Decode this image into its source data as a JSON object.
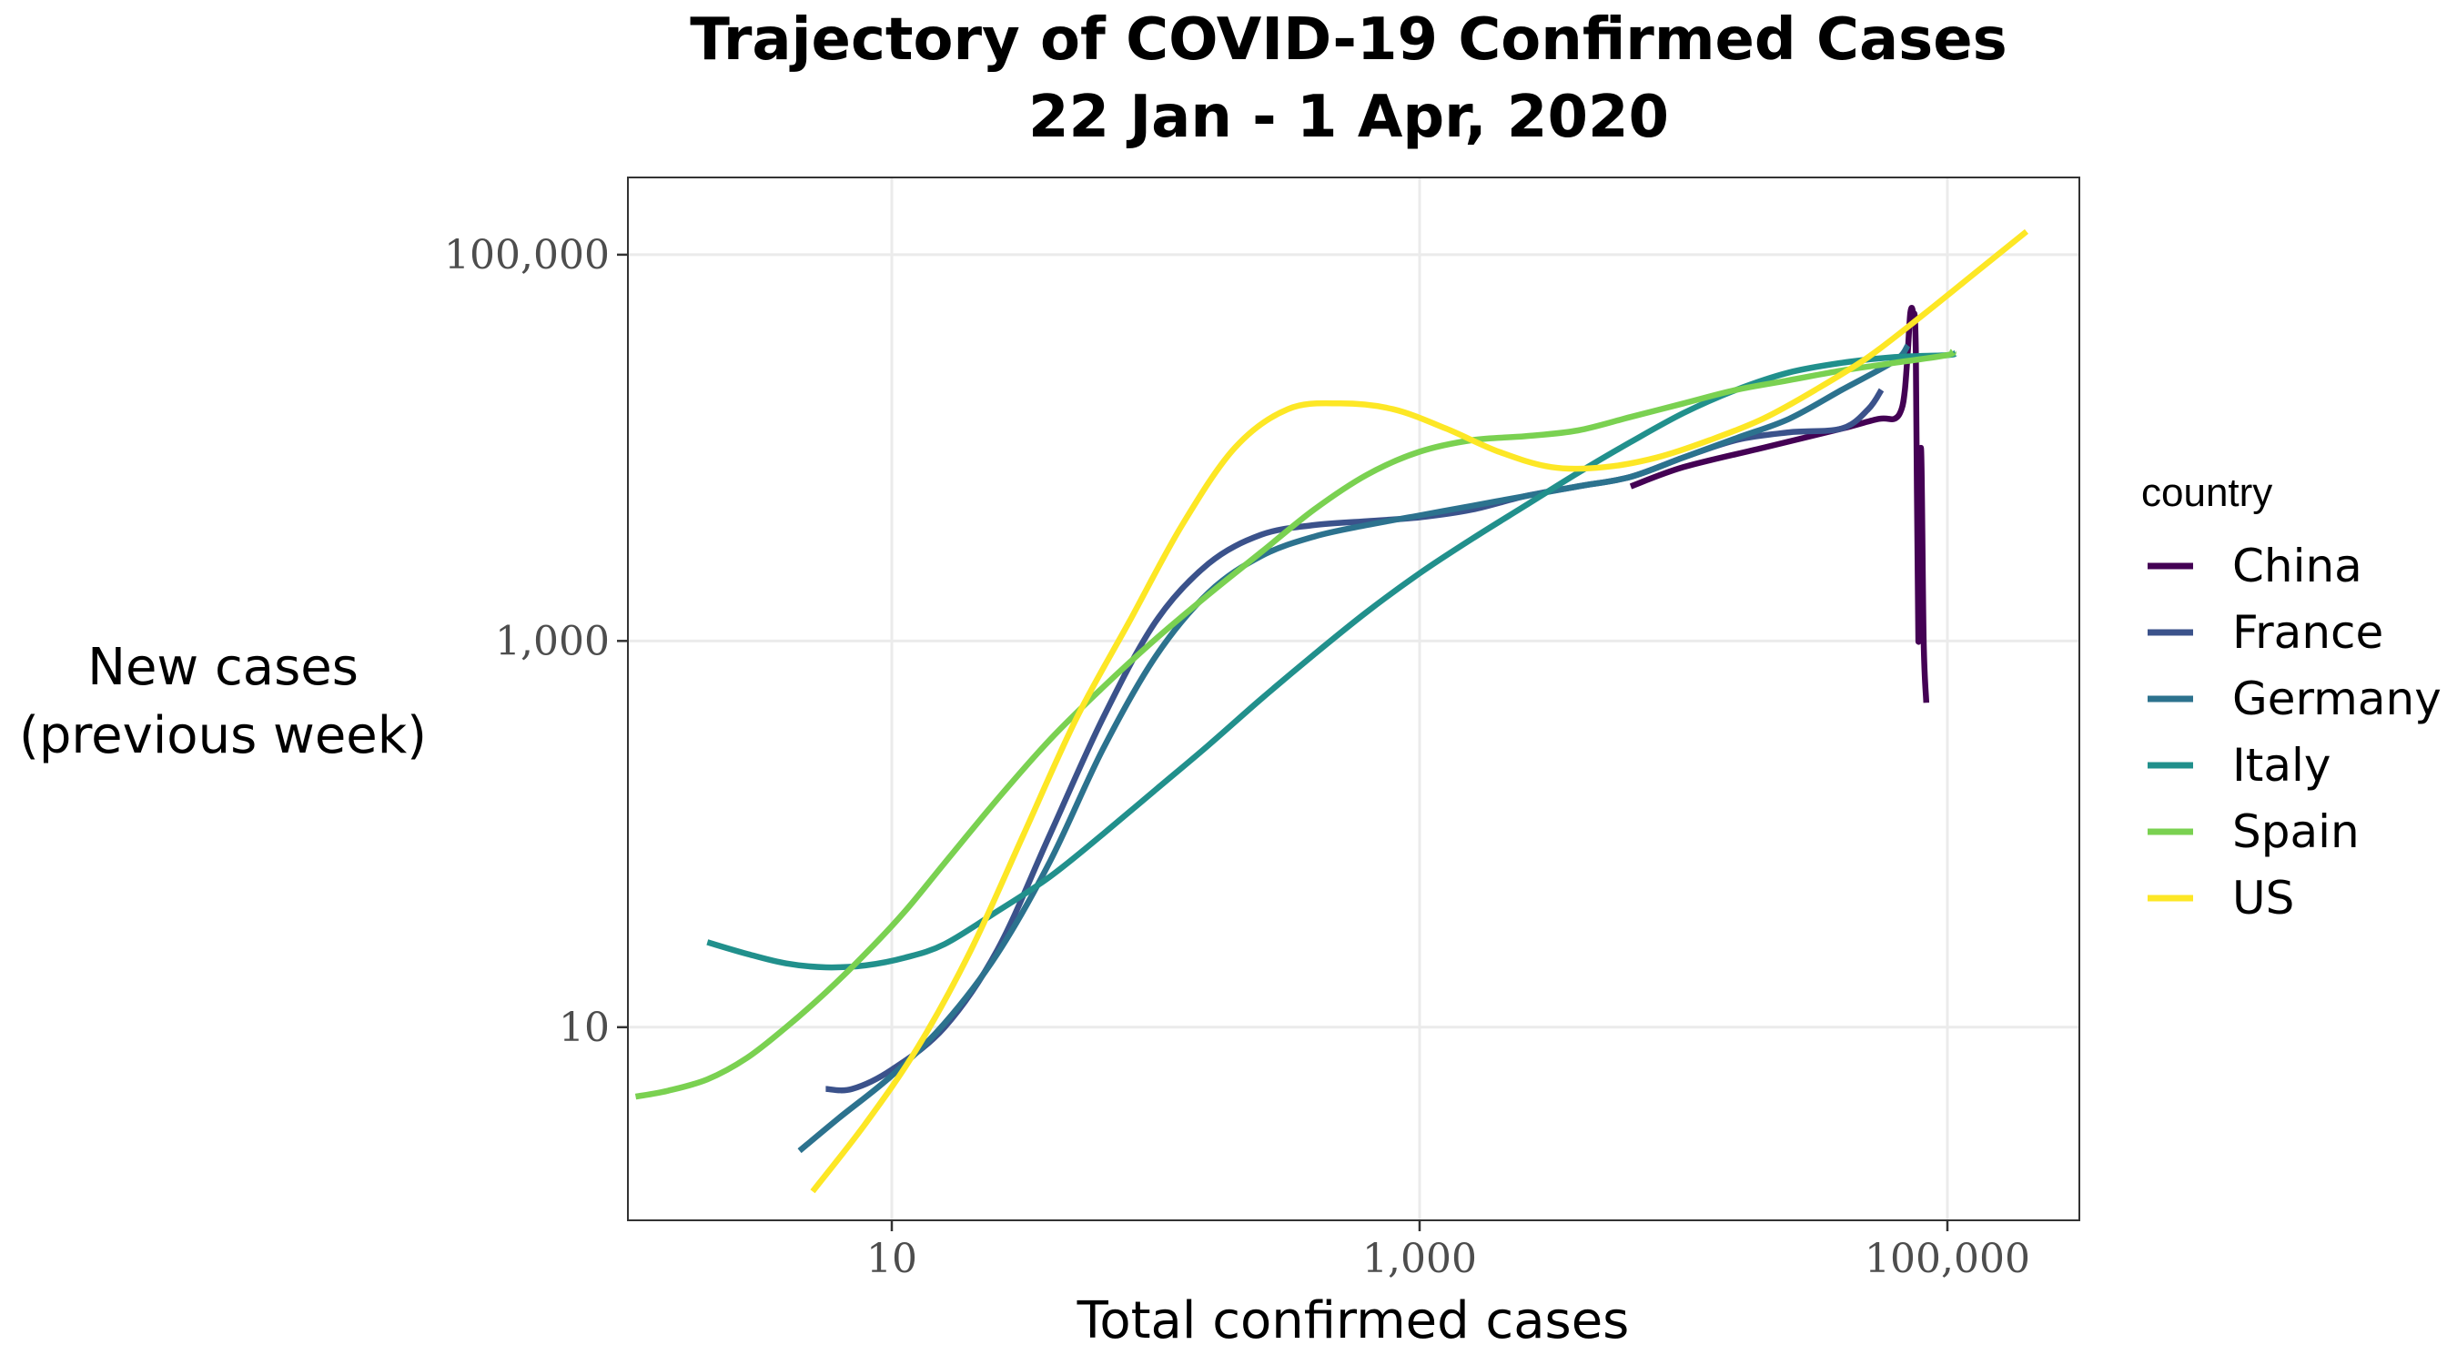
{
  "chart_data": {
    "type": "line",
    "title": "Trajectory of COVID-19 Confirmed Cases",
    "subtitle": "22 Jan - 1 Apr, 2020",
    "xlabel": "Total confirmed cases",
    "ylabel_line1": "New cases",
    "ylabel_line2": "(previous week)",
    "x_scale": "log10",
    "y_scale": "log10",
    "xlim": [
      1.0,
      316227
    ],
    "ylim": [
      1.0,
      251189
    ],
    "x_ticks": [
      10,
      1000,
      100000
    ],
    "x_tick_labels": [
      "10",
      "1,000",
      "100,000"
    ],
    "y_ticks": [
      10,
      1000,
      100000
    ],
    "y_tick_labels": [
      "10",
      "1,000",
      "100,000"
    ],
    "grid": true,
    "legend": {
      "title": "country",
      "position": "right"
    },
    "series": [
      {
        "name": "China",
        "color": "#440154",
        "x": [
          6310,
          10000,
          20000,
          40000,
          55000,
          63000,
          67000,
          69000,
          70800,
          72400,
          74100,
          75900,
          77600,
          79400,
          81300,
          83200
        ],
        "y": [
          6310,
          7943,
          10000,
          12589,
          14125,
          14125,
          15849,
          19953,
          31623,
          50119,
          50119,
          31623,
          1000,
          10000,
          1000,
          479
        ]
      },
      {
        "name": "France",
        "color": "#3b528b",
        "x": [
          5.62,
          7.08,
          10,
          15.85,
          25.12,
          39.81,
          63.1,
          100,
          158.5,
          251.2,
          398.1,
          631,
          1000,
          1585,
          2512,
          3981,
          6310,
          10000,
          15849,
          25119,
          39811,
          50119,
          56234
        ],
        "y": [
          4.79,
          4.79,
          6.03,
          10,
          25.12,
          100,
          398.1,
          1259,
          2512,
          3548,
          3981,
          4169,
          4365,
          4786,
          5623,
          6310,
          7079,
          8913,
          10965,
          12023,
          12589,
          15849,
          19953
        ]
      },
      {
        "name": "Germany",
        "color": "#2c728e",
        "x": [
          4.47,
          6.31,
          10,
          15.85,
          25.12,
          39.81,
          63.1,
          100,
          158.5,
          251.2,
          398.1,
          631,
          1000,
          1585,
          2512,
          3981,
          6310,
          10000,
          15849,
          25119,
          39811,
          63096,
          70795
        ],
        "y": [
          2.29,
          3.39,
          5.62,
          10.47,
          23.99,
          72.44,
          275.4,
          831.8,
          1778,
          2754,
          3467,
          3981,
          4467,
          5012,
          5623,
          6310,
          7079,
          8913,
          11220,
          14125,
          19953,
          28184,
          33884
        ]
      },
      {
        "name": "Italy",
        "color": "#21908c",
        "x": [
          2.0,
          2.82,
          3.98,
          5.62,
          7.94,
          11.22,
          15.85,
          25.12,
          39.81,
          63.1,
          100,
          158.5,
          251.2,
          398.1,
          631,
          1000,
          1585,
          2512,
          3981,
          6310,
          10000,
          15849,
          25119,
          39811,
          63096,
          100000,
          107152
        ],
        "y": [
          27.54,
          23.99,
          21.38,
          20.42,
          20.89,
          22.91,
          26.92,
          39.81,
          60.26,
          100,
          169.8,
          288.4,
          501.2,
          851.1,
          1413,
          2239,
          3388,
          5012,
          7413,
          10715,
          15136,
          19953,
          24547,
          27542,
          29512,
          30200,
          30903
        ]
      },
      {
        "name": "Spain",
        "color": "#7ad151",
        "x": [
          1.07,
          1.41,
          2.0,
          2.82,
          3.98,
          5.62,
          7.94,
          11.22,
          15.85,
          25.12,
          39.81,
          63.1,
          100,
          158.5,
          251.2,
          398.1,
          631,
          1000,
          1585,
          2512,
          3981,
          6310,
          10000,
          15849,
          25119,
          39811,
          63096,
          100000,
          104713
        ],
        "y": [
          4.37,
          4.68,
          5.37,
          6.92,
          10,
          15.14,
          23.99,
          39.81,
          70.79,
          151.4,
          309,
          575.4,
          1023,
          1738,
          2884,
          4786,
          7244,
          9550,
          10965,
          11482,
          12303,
          14454,
          16982,
          19953,
          22387,
          25119,
          27542,
          30200,
          31623
        ]
      },
      {
        "name": "US",
        "color": "#fde725",
        "x": [
          5.01,
          7.94,
          12.59,
          19.95,
          31.62,
          50.12,
          79.43,
          125.9,
          199.5,
          316.2,
          501.2,
          794.3,
          1259,
          1995,
          3162,
          5012,
          7943,
          12589,
          19953,
          31623,
          50119,
          79433,
          125893,
          199526
        ],
        "y": [
          1.41,
          3.16,
          7.94,
          25.12,
          100,
          398.1,
          1259,
          3981,
          10000,
          15849,
          16982,
          15849,
          12589,
          9550,
          7943,
          7943,
          8913,
          10965,
          14125,
          19953,
          29512,
          47863,
          79433,
          131826
        ]
      }
    ]
  }
}
